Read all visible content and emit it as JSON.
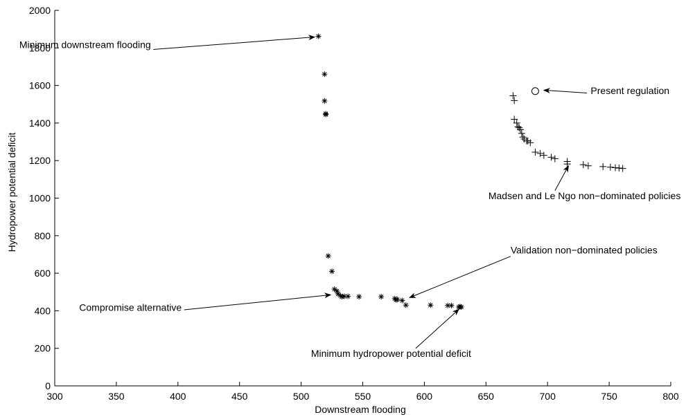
{
  "chart_data": {
    "type": "scatter",
    "title": "",
    "xlabel": "Downstream flooding",
    "ylabel": "Hydropower potential deficit",
    "xlim": [
      300,
      800
    ],
    "ylim": [
      0,
      2000
    ],
    "xticks": [
      300,
      350,
      400,
      450,
      500,
      550,
      600,
      650,
      700,
      750,
      800
    ],
    "yticks": [
      0,
      200,
      400,
      600,
      800,
      1000,
      1200,
      1400,
      1600,
      1800,
      2000
    ],
    "grid": false,
    "series": [
      {
        "marker": "asterisk",
        "points": [
          [
            514,
            1862
          ],
          [
            519,
            1660
          ],
          [
            519,
            1518
          ],
          [
            520,
            1450
          ],
          [
            520,
            1445
          ],
          [
            522,
            692
          ],
          [
            525,
            610
          ],
          [
            527,
            515
          ],
          [
            529,
            505
          ],
          [
            530,
            490
          ],
          [
            532,
            480
          ],
          [
            533,
            475
          ],
          [
            535,
            477
          ],
          [
            538,
            477
          ],
          [
            547,
            475
          ],
          [
            565,
            475
          ],
          [
            576,
            465
          ],
          [
            577,
            458
          ],
          [
            578,
            460
          ],
          [
            582,
            455
          ],
          [
            585,
            430
          ],
          [
            605,
            430
          ],
          [
            619,
            428
          ],
          [
            622,
            428
          ],
          [
            628,
            420
          ],
          [
            629,
            422
          ],
          [
            630,
            420
          ]
        ]
      },
      {
        "marker": "plus",
        "points": [
          [
            672,
            1545
          ],
          [
            673,
            1520
          ],
          [
            673,
            1420
          ],
          [
            675,
            1400
          ],
          [
            676,
            1380
          ],
          [
            677,
            1375
          ],
          [
            678,
            1365
          ],
          [
            679,
            1345
          ],
          [
            680,
            1325
          ],
          [
            681,
            1315
          ],
          [
            683,
            1305
          ],
          [
            684,
            1305
          ],
          [
            686,
            1295
          ],
          [
            690,
            1245
          ],
          [
            694,
            1238
          ],
          [
            697,
            1228
          ],
          [
            703,
            1218
          ],
          [
            706,
            1210
          ],
          [
            716,
            1195
          ],
          [
            716,
            1182
          ],
          [
            729,
            1178
          ],
          [
            733,
            1172
          ],
          [
            745,
            1168
          ],
          [
            751,
            1165
          ],
          [
            755,
            1162
          ],
          [
            758,
            1160
          ],
          [
            761,
            1158
          ]
        ]
      },
      {
        "marker": "circle",
        "points": [
          [
            690,
            1570
          ]
        ]
      }
    ],
    "annotations": [
      {
        "text": "Minimum downstream flooding",
        "label_x": 378,
        "label_y": 1800,
        "anchor": "end",
        "start_x": 380,
        "start_y": 1792,
        "tip_x": 511,
        "tip_y": 1858
      },
      {
        "text": "Present regulation",
        "label_x": 735,
        "label_y": 1555,
        "anchor": "start",
        "start_x": 732,
        "start_y": 1560,
        "tip_x": 697,
        "tip_y": 1575
      },
      {
        "text": "Madsen and Le Ngo non−dominated policies",
        "label_x": 652,
        "label_y": 995,
        "anchor": "start",
        "start_x": 706,
        "start_y": 1040,
        "tip_x": 717,
        "tip_y": 1172
      },
      {
        "text": "Validation non−dominated policies",
        "label_x": 670,
        "label_y": 705,
        "anchor": "start",
        "start_x": 670,
        "start_y": 690,
        "tip_x": 588,
        "tip_y": 470
      },
      {
        "text": "Compromise alternative",
        "label_x": 403,
        "label_y": 400,
        "anchor": "end",
        "start_x": 405,
        "start_y": 405,
        "tip_x": 524,
        "tip_y": 485
      },
      {
        "text": "Minimum hydropower potential deficit",
        "label_x": 573,
        "label_y": 155,
        "anchor": "middle",
        "start_x": 593,
        "start_y": 200,
        "tip_x": 628,
        "tip_y": 408
      }
    ]
  }
}
